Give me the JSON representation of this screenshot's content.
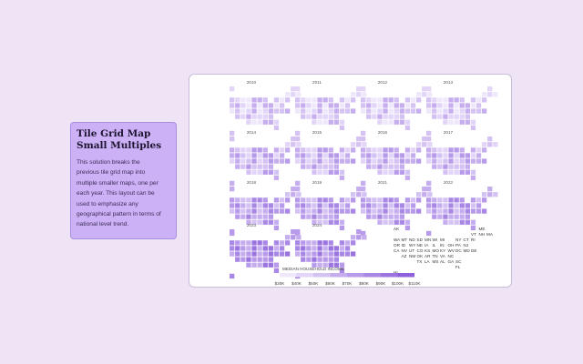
{
  "card": {
    "title_line1": "Tile Grid Map",
    "title_line2": "Small Multiples",
    "body_lines": [
      "This solution breaks the",
      "previous tile grid map into",
      "multiple smaller maps, one per",
      "each year. This layout can be",
      "used to emphasize any",
      "geographical pattern in terms of",
      "national level trend."
    ]
  },
  "years": [
    "2010",
    "2011",
    "2012",
    "2013",
    "2014",
    "2015",
    "2016",
    "2017",
    "2018",
    "2019",
    "2021",
    "2022",
    "2023",
    "2024"
  ],
  "reference_rows": [
    [
      "AK",
      "",
      "",
      "",
      "",
      "",
      "",
      "",
      "",
      "",
      "",
      "ME"
    ],
    [
      "",
      "",
      "",
      "",
      "",
      "",
      "",
      "",
      "",
      "",
      "VT",
      "NH",
      "MA"
    ],
    [
      "WA",
      "MT",
      "ND",
      "SD",
      "MN",
      "WI",
      "MI",
      "",
      "NY",
      "CT",
      "RI"
    ],
    [
      "OR",
      "ID",
      "WY",
      "NE",
      "IA",
      "IL",
      "IN",
      "OH",
      "PA",
      "NJ"
    ],
    [
      "CA",
      "NV",
      "UT",
      "CO",
      "KS",
      "MO",
      "KY",
      "WV",
      "DC",
      "MD",
      "DE"
    ],
    [
      "",
      "AZ",
      "NM",
      "OK",
      "AR",
      "TN",
      "VA",
      "NC"
    ],
    [
      "",
      "",
      "",
      "TX",
      "LA",
      "MS",
      "AL",
      "GA",
      "SC"
    ],
    [
      "",
      "",
      "",
      "",
      "",
      "",
      "",
      "",
      "FL"
    ],
    [
      "HI"
    ]
  ],
  "legend": {
    "title": "MEDIAN HOUSEHOLD INCOME",
    "ticks": [
      "$30K",
      "$40K",
      "$50K",
      "$60K",
      "$70K",
      "$80K",
      "$90K",
      "$100K",
      "$110K"
    ],
    "colors": [
      "#efe8fb",
      "#e2d5f7",
      "#d4c2f3",
      "#c6aeee",
      "#b89aea",
      "#a987e5",
      "#9b74e0",
      "#8c61db"
    ]
  },
  "colors": {
    "page_bg": "#efe4f5",
    "card_bg": "#cdb1f6",
    "panel_bg": "#ffffff"
  }
}
